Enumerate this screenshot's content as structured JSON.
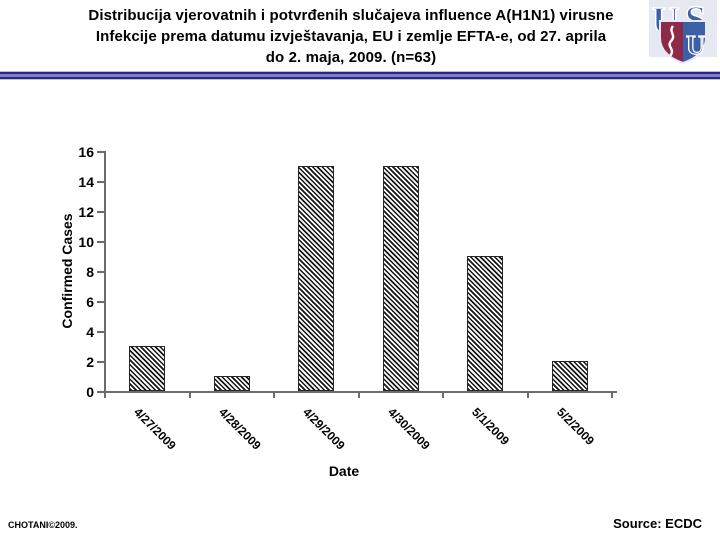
{
  "slide": {
    "title_lines": [
      "Distribucija vjerovatnih i potvrđenih slučajeva influence A(H1N1) virusne",
      "Infekcije prema datumu izvještavanja, EU i zemlje EFTA-e, od 27. aprila",
      "do 2. maja, 2009. (n=63)"
    ],
    "footer_left": "CHOTANI©2009.",
    "footer_right": "Source: ECDC",
    "logo": {
      "letter_u": "U",
      "letter_s": "S",
      "shield_letter": "U",
      "colors": {
        "blue": "#3c5fa5",
        "maroon": "#8e2a49",
        "panel": "#e6e9f2"
      }
    },
    "separator_colors": {
      "navy": "#26268c",
      "light_blue": "#7d7dc8",
      "gray": "#c2c2c2"
    }
  },
  "chart_data": {
    "type": "bar",
    "title": "",
    "categories": [
      "4/27/2009",
      "4/28/2009",
      "4/29/2009",
      "4/30/2009",
      "5/1/2009",
      "5/2/2009"
    ],
    "values": [
      3,
      1,
      15,
      15,
      9,
      2
    ],
    "xlabel": "Date",
    "ylabel": "Confirmed Cases",
    "ylim": [
      0,
      16
    ],
    "yticks": [
      0,
      2,
      4,
      6,
      8,
      10,
      12,
      14,
      16
    ],
    "grid": false,
    "legend": false,
    "bar_style": "black-diagonal-hatch",
    "axis_color": "#6b6b6b"
  }
}
